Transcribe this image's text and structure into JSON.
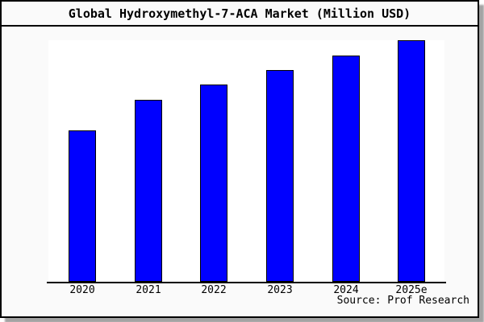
{
  "window": {
    "title": "Global Hydroxymethyl-7-ACA Market (Million USD)",
    "source_note": "Source: Prof Research"
  },
  "chart_data": {
    "type": "bar",
    "title": "Global Hydroxymethyl-7-ACA Market (Million USD)",
    "categories": [
      "2020",
      "2021",
      "2022",
      "2023",
      "2024",
      "2025e"
    ],
    "values": [
      188,
      226,
      245,
      263,
      281,
      300
    ],
    "value_unit": "relative bar height in px (no numeric y-axis labels shown)",
    "values_pct_of_max": [
      62.7,
      75.3,
      81.7,
      87.7,
      93.7,
      100
    ],
    "xlabel": "",
    "ylabel": "",
    "y_axis_ticks": "none",
    "gridlines": false,
    "legend": "none",
    "annotation": "Source: Prof Research",
    "colors": {
      "bar_fill": "#0000ff",
      "bar_border": "#000000",
      "plot_background": "#ffffff",
      "outer_background": "#fafafa",
      "frame_border": "#000000",
      "text": "#000000",
      "shadow": "#a3a3a3"
    }
  }
}
